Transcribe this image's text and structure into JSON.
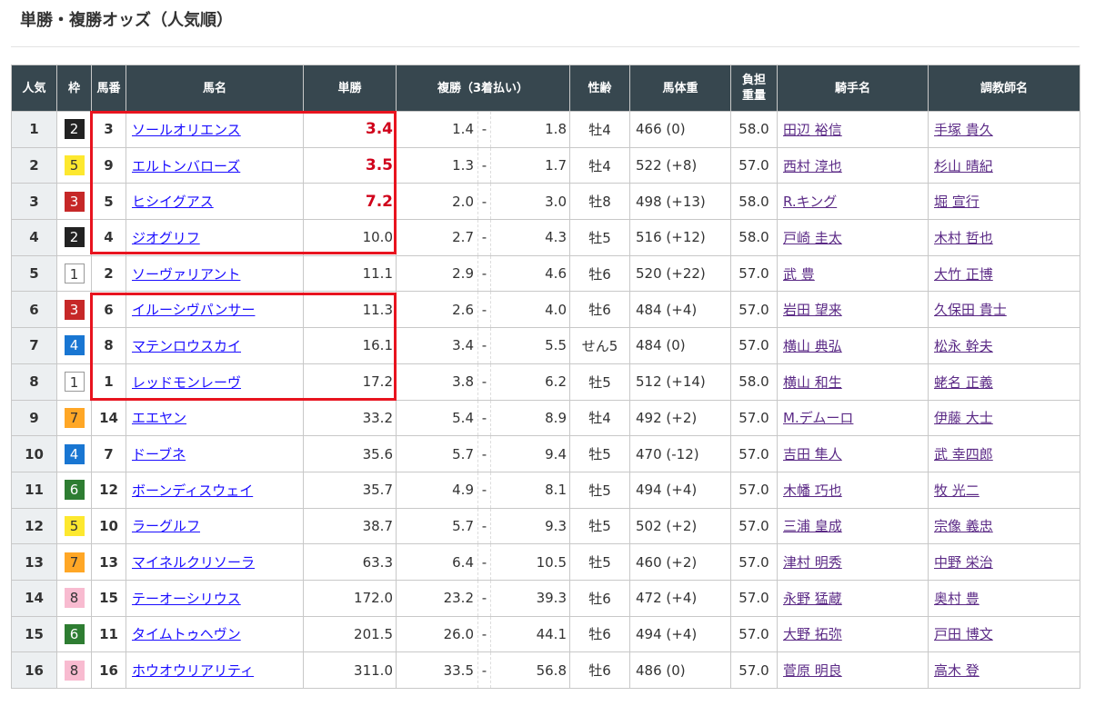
{
  "page_title": "単勝・複勝オッズ（人気順）",
  "headers": [
    "人気",
    "枠",
    "馬番",
    "馬名",
    "単勝",
    "複勝（3着払い）",
    "性齢",
    "馬体重",
    "負担\n重量",
    "騎手名",
    "調教師名"
  ],
  "waku_colors": {
    "1": {
      "bg": "#ffffff",
      "fg": "#333333",
      "border": "#999999"
    },
    "2": {
      "bg": "#222222",
      "fg": "#ffffff"
    },
    "3": {
      "bg": "#c62828",
      "fg": "#ffffff"
    },
    "4": {
      "bg": "#1976d2",
      "fg": "#ffffff"
    },
    "5": {
      "bg": "#fde82f",
      "fg": "#333333"
    },
    "6": {
      "bg": "#2e7d32",
      "fg": "#ffffff"
    },
    "7": {
      "bg": "#ffa726",
      "fg": "#333333"
    },
    "8": {
      "bg": "#f8bbd0",
      "fg": "#333333"
    }
  },
  "highlight_color": "#e8141f",
  "rows": [
    {
      "pop": "1",
      "waku": "2",
      "num": "3",
      "name": "ソールオリエンス",
      "win": "3.4",
      "fav": true,
      "plc_lo": "1.4",
      "plc_hi": "1.8",
      "sexage": "牡4",
      "weight": "466 (0)",
      "burden": "58.0",
      "jockey": "田辺 裕信",
      "trainer": "手塚 貴久"
    },
    {
      "pop": "2",
      "waku": "5",
      "num": "9",
      "name": "エルトンバローズ",
      "win": "3.5",
      "fav": true,
      "plc_lo": "1.3",
      "plc_hi": "1.7",
      "sexage": "牡4",
      "weight": "522 (+8)",
      "burden": "57.0",
      "jockey": "西村 淳也",
      "trainer": "杉山 晴紀"
    },
    {
      "pop": "3",
      "waku": "3",
      "num": "5",
      "name": "ヒシイグアス",
      "win": "7.2",
      "fav": true,
      "plc_lo": "2.0",
      "plc_hi": "3.0",
      "sexage": "牡8",
      "weight": "498 (+13)",
      "burden": "58.0",
      "jockey": "R.キング",
      "trainer": "堀 宣行"
    },
    {
      "pop": "4",
      "waku": "2",
      "num": "4",
      "name": "ジオグリフ",
      "win": "10.0",
      "fav": false,
      "plc_lo": "2.7",
      "plc_hi": "4.3",
      "sexage": "牡5",
      "weight": "516 (+12)",
      "burden": "58.0",
      "jockey": "戸崎 圭太",
      "trainer": "木村 哲也"
    },
    {
      "pop": "5",
      "waku": "1",
      "num": "2",
      "name": "ソーヴァリアント",
      "win": "11.1",
      "fav": false,
      "plc_lo": "2.9",
      "plc_hi": "4.6",
      "sexage": "牡6",
      "weight": "520 (+22)",
      "burden": "57.0",
      "jockey": "武 豊",
      "trainer": "大竹 正博"
    },
    {
      "pop": "6",
      "waku": "3",
      "num": "6",
      "name": "イルーシヴパンサー",
      "win": "11.3",
      "fav": false,
      "plc_lo": "2.6",
      "plc_hi": "4.0",
      "sexage": "牡6",
      "weight": "484 (+4)",
      "burden": "57.0",
      "jockey": "岩田 望来",
      "trainer": "久保田 貴士"
    },
    {
      "pop": "7",
      "waku": "4",
      "num": "8",
      "name": "マテンロウスカイ",
      "win": "16.1",
      "fav": false,
      "plc_lo": "3.4",
      "plc_hi": "5.5",
      "sexage": "せん5",
      "weight": "484 (0)",
      "burden": "57.0",
      "jockey": "横山 典弘",
      "trainer": "松永 幹夫"
    },
    {
      "pop": "8",
      "waku": "1",
      "num": "1",
      "name": "レッドモンレーヴ",
      "win": "17.2",
      "fav": false,
      "plc_lo": "3.8",
      "plc_hi": "6.2",
      "sexage": "牡5",
      "weight": "512 (+14)",
      "burden": "58.0",
      "jockey": "横山 和生",
      "trainer": "蛯名 正義"
    },
    {
      "pop": "9",
      "waku": "7",
      "num": "14",
      "name": "エエヤン",
      "win": "33.2",
      "fav": false,
      "plc_lo": "5.4",
      "plc_hi": "8.9",
      "sexage": "牡4",
      "weight": "492 (+2)",
      "burden": "57.0",
      "jockey": "M.デムーロ",
      "trainer": "伊藤 大士"
    },
    {
      "pop": "10",
      "waku": "4",
      "num": "7",
      "name": "ドーブネ",
      "win": "35.6",
      "fav": false,
      "plc_lo": "5.7",
      "plc_hi": "9.4",
      "sexage": "牡5",
      "weight": "470 (-12)",
      "burden": "57.0",
      "jockey": "吉田 隼人",
      "trainer": "武 幸四郎"
    },
    {
      "pop": "11",
      "waku": "6",
      "num": "12",
      "name": "ボーンディスウェイ",
      "win": "35.7",
      "fav": false,
      "plc_lo": "4.9",
      "plc_hi": "8.1",
      "sexage": "牡5",
      "weight": "494 (+4)",
      "burden": "57.0",
      "jockey": "木幡 巧也",
      "trainer": "牧 光二"
    },
    {
      "pop": "12",
      "waku": "5",
      "num": "10",
      "name": "ラーグルフ",
      "win": "38.7",
      "fav": false,
      "plc_lo": "5.7",
      "plc_hi": "9.3",
      "sexage": "牡5",
      "weight": "502 (+2)",
      "burden": "57.0",
      "jockey": "三浦 皇成",
      "trainer": "宗像 義忠"
    },
    {
      "pop": "13",
      "waku": "7",
      "num": "13",
      "name": "マイネルクリソーラ",
      "win": "63.3",
      "fav": false,
      "plc_lo": "6.4",
      "plc_hi": "10.5",
      "sexage": "牡5",
      "weight": "460 (+2)",
      "burden": "57.0",
      "jockey": "津村 明秀",
      "trainer": "中野 栄治"
    },
    {
      "pop": "14",
      "waku": "8",
      "num": "15",
      "name": "テーオーシリウス",
      "win": "172.0",
      "fav": false,
      "plc_lo": "23.2",
      "plc_hi": "39.3",
      "sexage": "牡6",
      "weight": "472 (+4)",
      "burden": "57.0",
      "jockey": "永野 猛蔵",
      "trainer": "奥村 豊"
    },
    {
      "pop": "15",
      "waku": "6",
      "num": "11",
      "name": "タイムトゥヘヴン",
      "win": "201.5",
      "fav": false,
      "plc_lo": "26.0",
      "plc_hi": "44.1",
      "sexage": "牡6",
      "weight": "494 (+4)",
      "burden": "57.0",
      "jockey": "大野 拓弥",
      "trainer": "戸田 博文"
    },
    {
      "pop": "16",
      "waku": "8",
      "num": "16",
      "name": "ホウオウリアリティ",
      "win": "311.0",
      "fav": false,
      "plc_lo": "33.5",
      "plc_hi": "56.8",
      "sexage": "牡6",
      "weight": "486 (0)",
      "burden": "57.0",
      "jockey": "菅原 明良",
      "trainer": "高木 登"
    }
  ]
}
